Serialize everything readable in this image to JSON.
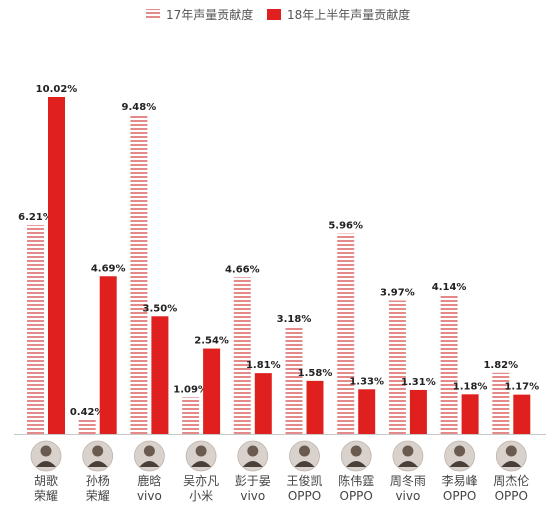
{
  "chart_data": {
    "type": "bar",
    "categories": [
      {
        "name": "胡歌",
        "brand": "荣耀"
      },
      {
        "name": "孙杨",
        "brand": "荣耀"
      },
      {
        "name": "鹿晗",
        "brand": "vivo"
      },
      {
        "name": "吴亦凡",
        "brand": "小米"
      },
      {
        "name": "彭于晏",
        "brand": "vivo"
      },
      {
        "name": "王俊凯",
        "brand": "OPPO"
      },
      {
        "name": "陈伟霆",
        "brand": "OPPO"
      },
      {
        "name": "周冬雨",
        "brand": "vivo"
      },
      {
        "name": "李易峰",
        "brand": "OPPO"
      },
      {
        "name": "周杰伦",
        "brand": "OPPO"
      }
    ],
    "series": [
      {
        "name": "17年声量贡献度",
        "color": "#e58a8a",
        "pattern": "horizontal-stripes",
        "values": [
          6.21,
          0.42,
          9.48,
          1.09,
          4.66,
          3.18,
          5.96,
          3.97,
          4.14,
          1.82
        ],
        "labels": [
          "6.21%",
          "0.42%",
          "9.48%",
          "1.09%",
          "4.66%",
          "3.18%",
          "5.96%",
          "3.97%",
          "4.14%",
          "1.82%"
        ]
      },
      {
        "name": "18年上半年声量贡献度",
        "color": "#e0201f",
        "pattern": "solid",
        "values": [
          10.02,
          4.69,
          3.5,
          2.54,
          1.81,
          1.58,
          1.33,
          1.31,
          1.18,
          1.17
        ],
        "labels": [
          "10.02%",
          "4.69%",
          "3.50%",
          "2.54%",
          "1.81%",
          "1.58%",
          "1.33%",
          "1.31%",
          "1.18%",
          "1.17%"
        ]
      }
    ],
    "ylim": [
      0,
      10.02
    ],
    "legend": "top-center",
    "grid": false,
    "avatar_icons": [
      "portrait-icon"
    ]
  }
}
